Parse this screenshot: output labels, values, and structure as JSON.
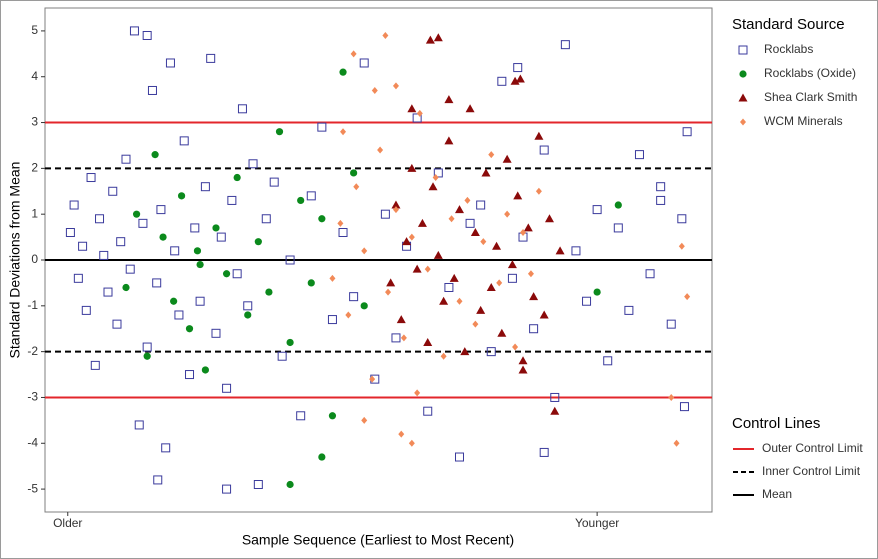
{
  "chart_data": {
    "type": "scatter",
    "x_label": "Sample Sequence (Earliest to Most Recent)",
    "y_label": "Standard Deviations from Mean",
    "xlim": [
      -43,
      1217
    ],
    "xticks": [
      {
        "value": 0,
        "label": "Older"
      },
      {
        "value": 1000,
        "label": "Younger"
      }
    ],
    "ylim": [
      -5.5,
      5.5
    ],
    "yticks": [
      -5,
      -4,
      -3,
      -2,
      -1,
      0,
      1,
      2,
      3,
      4,
      5
    ],
    "legend_title": "Standard Source",
    "series": [
      {
        "name": "Rocklabs",
        "color": "#3a3a9c",
        "marker": "square-open",
        "x": [
          5,
          12,
          20,
          28,
          35,
          44,
          52,
          60,
          68,
          76,
          85,
          93,
          100,
          110,
          118,
          126,
          135,
          142,
          150,
          160,
          168,
          176,
          185,
          194,
          202,
          210,
          220,
          230,
          240,
          250,
          260,
          270,
          280,
          290,
          300,
          310,
          320,
          330,
          340,
          350,
          360,
          375,
          390,
          405,
          420,
          440,
          460,
          480,
          500,
          520,
          540,
          560,
          580,
          600,
          620,
          640,
          660,
          680,
          700,
          720,
          740,
          760,
          780,
          800,
          820,
          840,
          860,
          880,
          900,
          920,
          940,
          960,
          980,
          1000,
          1020,
          1040,
          1060,
          1080,
          1100,
          1120,
          1140,
          1160,
          1170,
          1165,
          150,
          170,
          300,
          900,
          850,
          1120
        ],
        "values": [
          0.6,
          1.2,
          -0.4,
          0.3,
          -1.1,
          1.8,
          -2.3,
          0.9,
          0.1,
          -0.7,
          1.5,
          -1.4,
          0.4,
          2.2,
          -0.2,
          5.0,
          -3.6,
          0.8,
          -1.9,
          3.7,
          -0.5,
          1.1,
          -4.1,
          4.3,
          0.2,
          -1.2,
          2.6,
          -2.5,
          0.7,
          -0.9,
          1.6,
          4.4,
          -1.6,
          0.5,
          -2.8,
          1.3,
          -0.3,
          3.3,
          -1.0,
          2.1,
          -4.9,
          0.9,
          1.7,
          -2.1,
          0.0,
          -3.4,
          1.4,
          2.9,
          -1.3,
          0.6,
          -0.8,
          4.3,
          -2.6,
          1.0,
          -1.7,
          0.3,
          3.1,
          -3.3,
          1.9,
          -0.6,
          -4.3,
          0.8,
          1.2,
          -2.0,
          3.9,
          -0.4,
          0.5,
          -1.5,
          2.4,
          -3.0,
          4.7,
          0.2,
          -0.9,
          1.1,
          -2.2,
          0.7,
          -1.1,
          2.3,
          -0.3,
          1.6,
          -1.4,
          0.9,
          2.8,
          -3.2,
          4.9,
          -4.8,
          -5.0,
          -4.2,
          4.2,
          1.3
        ]
      },
      {
        "name": "Rocklabs (Oxide)",
        "color": "#0b8a1c",
        "marker": "circle",
        "x": [
          110,
          130,
          150,
          165,
          180,
          200,
          215,
          230,
          245,
          260,
          280,
          300,
          320,
          340,
          360,
          380,
          400,
          420,
          440,
          460,
          480,
          500,
          520,
          540,
          560,
          250,
          420,
          480,
          1000,
          1040
        ],
        "values": [
          -0.6,
          1.0,
          -2.1,
          2.3,
          0.5,
          -0.9,
          1.4,
          -1.5,
          0.2,
          -2.4,
          0.7,
          -0.3,
          1.8,
          -1.2,
          0.4,
          -0.7,
          2.8,
          -1.8,
          1.3,
          -0.5,
          0.9,
          -3.4,
          4.1,
          1.9,
          -1.0,
          -0.1,
          -4.9,
          -4.3,
          -0.7,
          1.2
        ]
      },
      {
        "name": "Shea Clark Smith",
        "color": "#8b0a0a",
        "marker": "triangle",
        "x": [
          610,
          620,
          630,
          640,
          650,
          660,
          670,
          680,
          690,
          700,
          710,
          720,
          730,
          740,
          750,
          760,
          770,
          780,
          790,
          800,
          810,
          820,
          830,
          840,
          850,
          860,
          870,
          880,
          890,
          900,
          910,
          920,
          930,
          685,
          700,
          845,
          855,
          650,
          720,
          860
        ],
        "values": [
          -0.5,
          1.2,
          -1.3,
          0.4,
          2.0,
          -0.2,
          0.8,
          -1.8,
          1.6,
          0.1,
          -0.9,
          2.6,
          -0.4,
          1.1,
          -2.0,
          3.3,
          0.6,
          -1.1,
          1.9,
          -0.6,
          0.3,
          -1.6,
          2.2,
          -0.1,
          1.4,
          -2.4,
          0.7,
          -0.8,
          2.7,
          -1.2,
          0.9,
          -3.3,
          0.2,
          4.8,
          4.85,
          3.9,
          3.95,
          3.3,
          3.5,
          -2.2
        ]
      },
      {
        "name": "WCM Minerals",
        "color": "#f28a58",
        "marker": "diamond",
        "x": [
          500,
          515,
          530,
          545,
          560,
          575,
          590,
          605,
          620,
          635,
          650,
          665,
          680,
          695,
          710,
          725,
          740,
          755,
          770,
          785,
          800,
          815,
          830,
          845,
          860,
          875,
          890,
          540,
          580,
          600,
          620,
          560,
          630,
          650,
          1140,
          1150,
          1160,
          1170,
          520,
          660
        ],
        "values": [
          -0.4,
          0.8,
          -1.2,
          1.6,
          0.2,
          -2.6,
          2.4,
          -0.7,
          1.1,
          -1.7,
          0.5,
          3.2,
          -0.2,
          1.8,
          -2.1,
          0.9,
          -0.9,
          1.3,
          -1.4,
          0.4,
          2.3,
          -0.5,
          1.0,
          -1.9,
          0.6,
          -0.3,
          1.5,
          4.5,
          3.7,
          4.9,
          3.8,
          -3.5,
          -3.8,
          -4.0,
          -3.0,
          -4.0,
          0.3,
          -0.8,
          2.8,
          -2.9
        ]
      }
    ],
    "reference_legend_title": "Control Lines",
    "reference_lines": [
      {
        "name": "Outer Control Limit",
        "color": "#e3262b",
        "style": "solid",
        "values": [
          3,
          -3
        ]
      },
      {
        "name": "Inner Control Limit",
        "color": "#000000",
        "style": "dashed",
        "values": [
          2,
          -2
        ]
      },
      {
        "name": "Mean",
        "color": "#000000",
        "style": "solid",
        "values": [
          0
        ]
      }
    ]
  }
}
